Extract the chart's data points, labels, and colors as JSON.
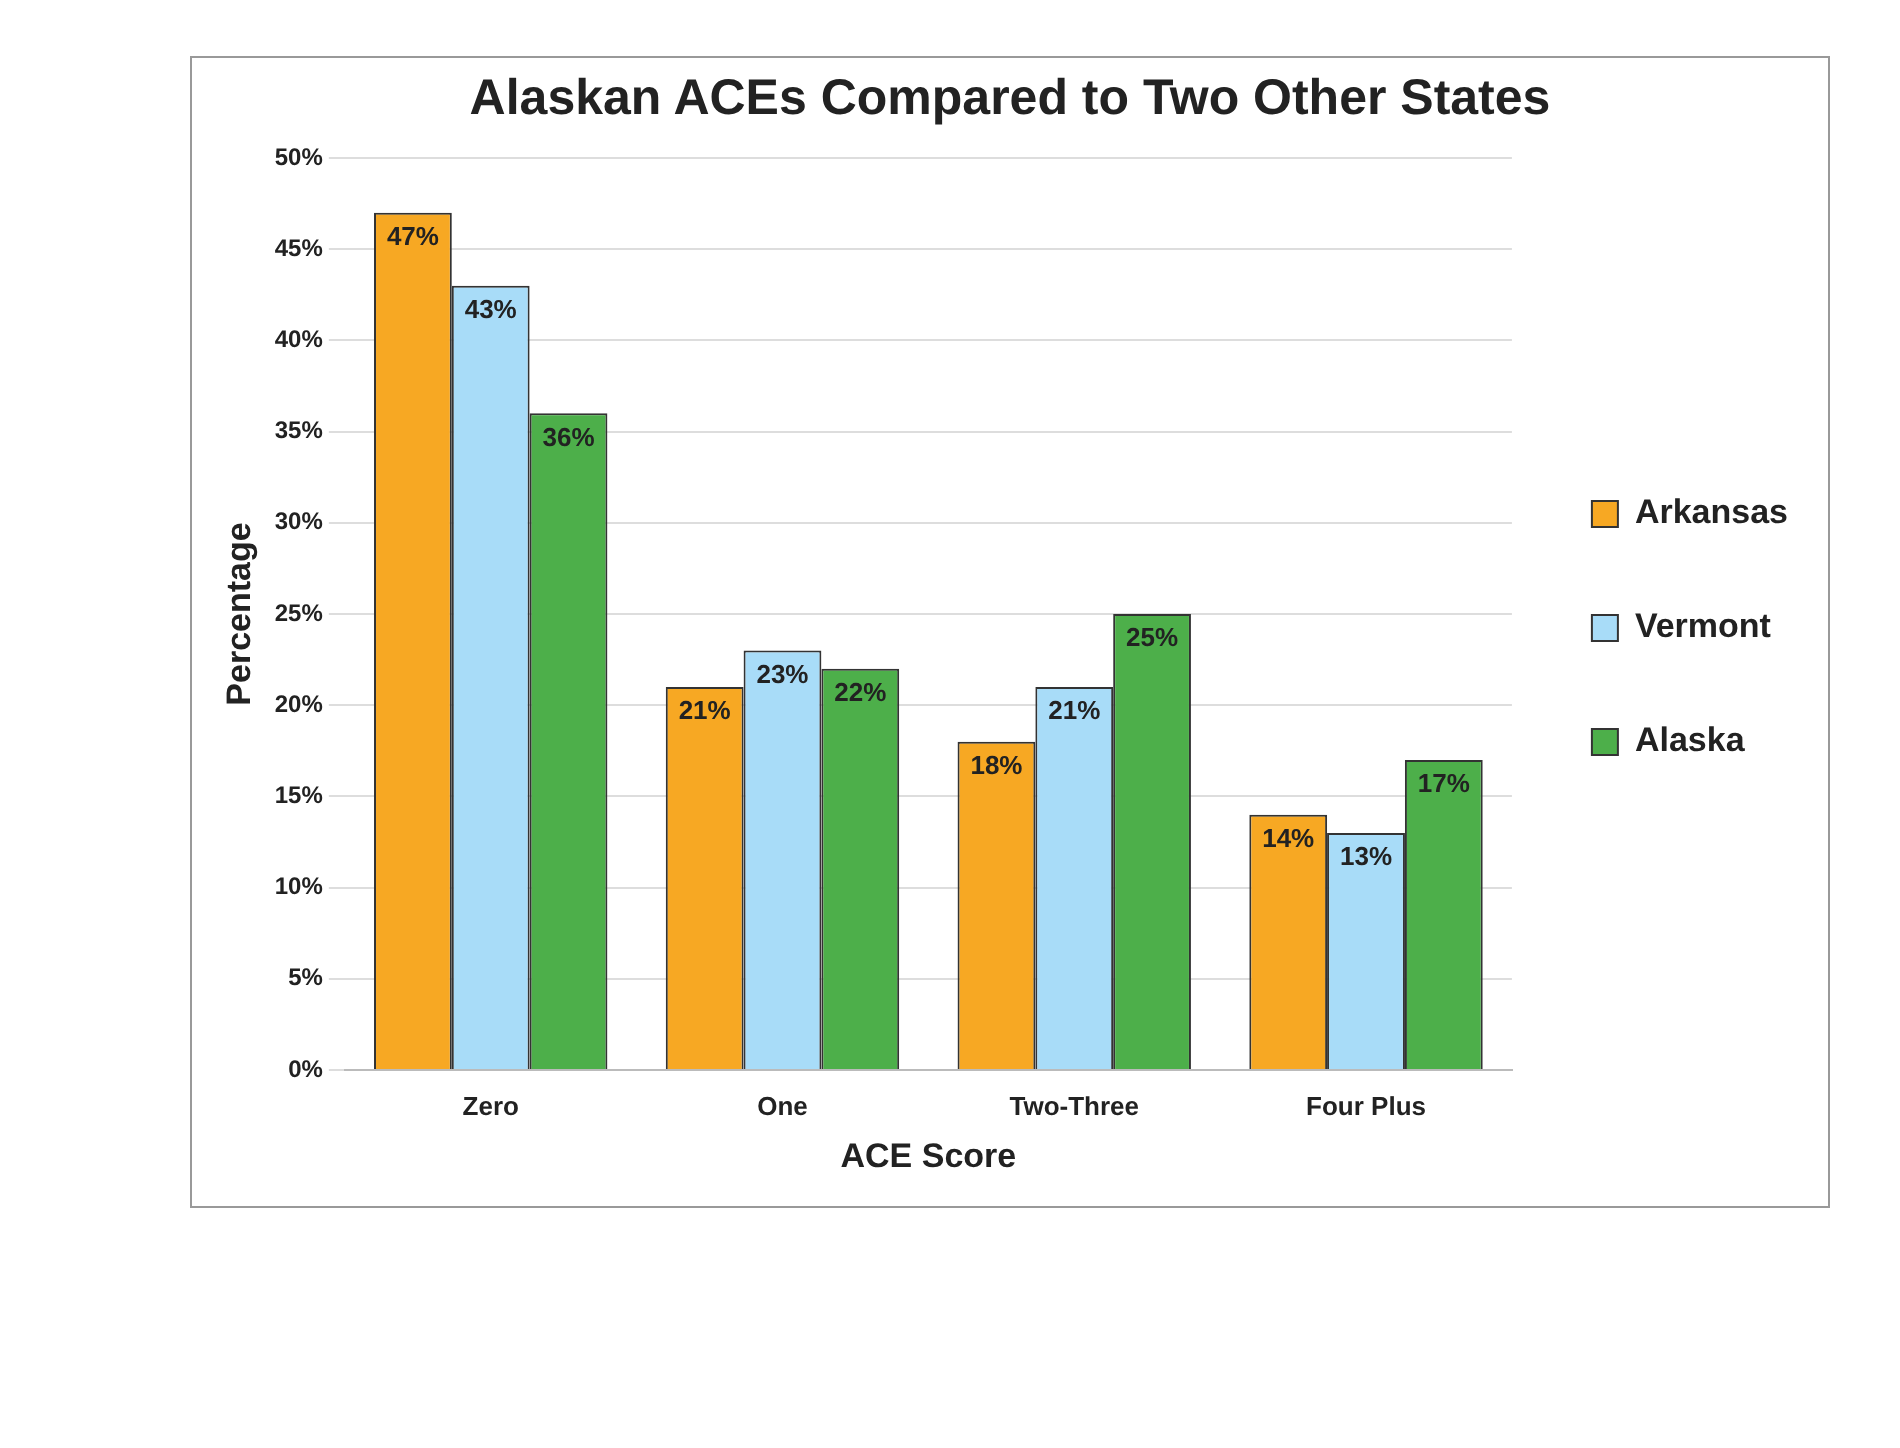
{
  "chart_data": {
    "type": "bar",
    "title": "Alaskan ACEs Compared to Two Other States",
    "xlabel": "ACE Score",
    "ylabel": "Percentage",
    "categories": [
      "Zero",
      "One",
      "Two-Three",
      "Four Plus"
    ],
    "series": [
      {
        "name": "Arkansas",
        "color": "#f7a823",
        "values": [
          47,
          21,
          18,
          14
        ],
        "value_labels": [
          "47%",
          "21%",
          "18%",
          "14%"
        ]
      },
      {
        "name": "Vermont",
        "color": "#a8dcf8",
        "values": [
          43,
          23,
          21,
          13
        ],
        "value_labels": [
          "43%",
          "23%",
          "21%",
          "13%"
        ]
      },
      {
        "name": "Alaska",
        "color": "#4daf4a",
        "values": [
          36,
          22,
          25,
          17
        ],
        "value_labels": [
          "36%",
          "22%",
          "25%",
          "17%"
        ]
      }
    ],
    "ylim": [
      0,
      50
    ],
    "yticks": [
      {
        "value": 0,
        "label": "0%"
      },
      {
        "value": 5,
        "label": "5%"
      },
      {
        "value": 10,
        "label": "10%"
      },
      {
        "value": 15,
        "label": "15%"
      },
      {
        "value": 20,
        "label": "20%"
      },
      {
        "value": 25,
        "label": "25%"
      },
      {
        "value": 30,
        "label": "30%"
      },
      {
        "value": 35,
        "label": "35%"
      },
      {
        "value": 40,
        "label": "40%"
      },
      {
        "value": 45,
        "label": "45%"
      },
      {
        "value": 50,
        "label": "50%"
      }
    ],
    "grid": "y",
    "legend": "right"
  }
}
